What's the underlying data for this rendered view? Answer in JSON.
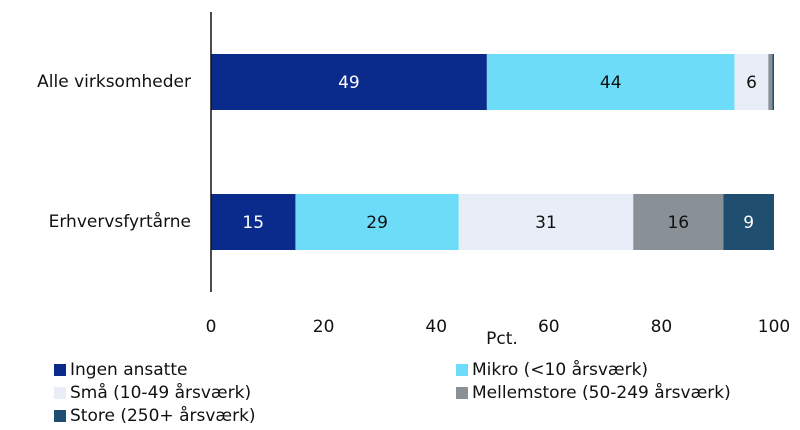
{
  "chart_data": {
    "type": "bar",
    "orientation": "horizontal",
    "stacked": true,
    "categories": [
      "Alle virksomheder",
      "Erhvervsfyrtårne"
    ],
    "series": [
      {
        "name": "Ingen ansatte",
        "color": "#0a2a8c",
        "values": [
          49,
          15
        ],
        "labels": [
          "49",
          "15"
        ],
        "label_color": "#ffffff"
      },
      {
        "name": "Mikro (<10 årsværk)",
        "color": "#6ddcf8",
        "values": [
          44,
          29
        ],
        "labels": [
          "44",
          "29"
        ],
        "label_color": "#111111"
      },
      {
        "name": "Små (10-49 årsværk)",
        "color": "#e8edf7",
        "values": [
          6,
          31
        ],
        "labels": [
          "6",
          "31"
        ],
        "label_color": "#111111"
      },
      {
        "name": "Mellemstore (50-249 årsværk)",
        "color": "#8a9196",
        "values": [
          0.7,
          16
        ],
        "labels": [
          "",
          "16"
        ],
        "label_color": "#111111"
      },
      {
        "name": "Store (250+ årsværk)",
        "color": "#1f4e6e",
        "values": [
          0.3,
          9
        ],
        "labels": [
          "",
          "9"
        ],
        "label_color": "#ffffff"
      }
    ],
    "xlabel": "Pct.",
    "xlim": [
      0,
      100
    ],
    "xticks": [
      "0",
      "20",
      "40",
      "60",
      "80",
      "100"
    ],
    "grid": false,
    "legend_position": "bottom"
  }
}
